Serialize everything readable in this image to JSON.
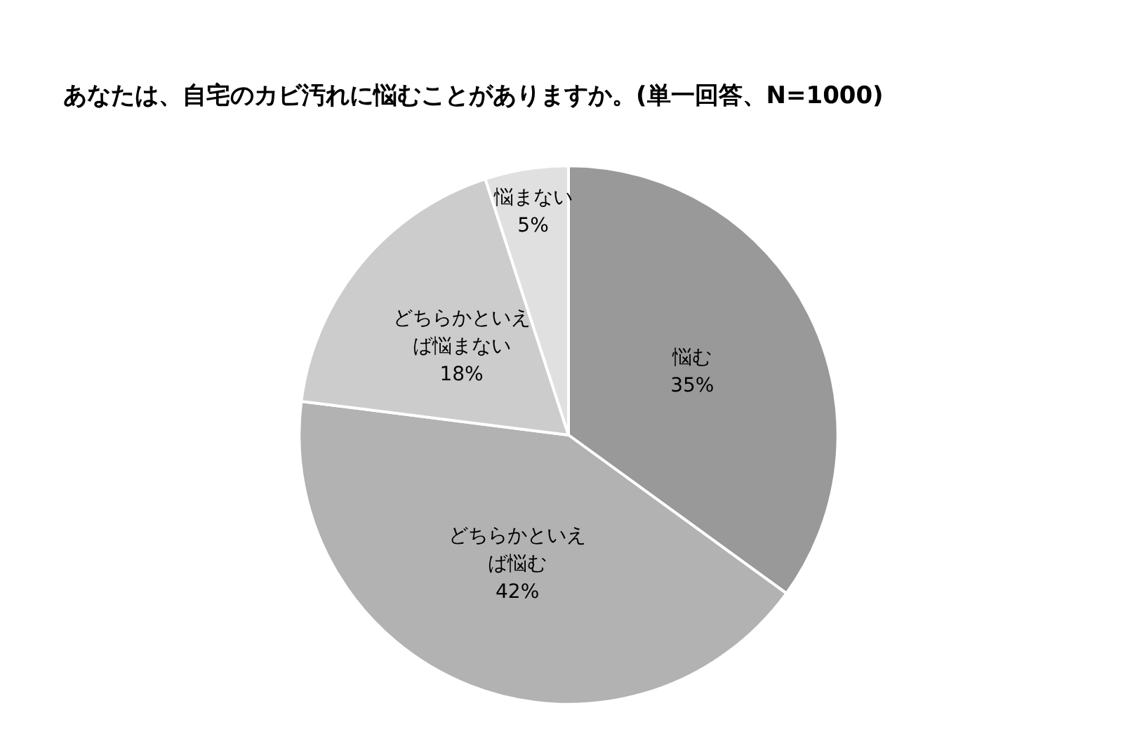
{
  "chart_data": {
    "type": "pie",
    "title": "あなたは、自宅のカビ汚れに悩むことがありますか。(単一回答、N=1000)",
    "categories": [
      "悩む",
      "どちらかといえば悩む",
      "どちらかといえば悩まない",
      "悩まない"
    ],
    "values": [
      35,
      42,
      18,
      5
    ],
    "colors": [
      "#999999",
      "#b2b2b2",
      "#cccccc",
      "#e0e0e0"
    ],
    "value_labels": [
      "35%",
      "42%",
      "18%",
      "5%"
    ],
    "legend": false
  }
}
